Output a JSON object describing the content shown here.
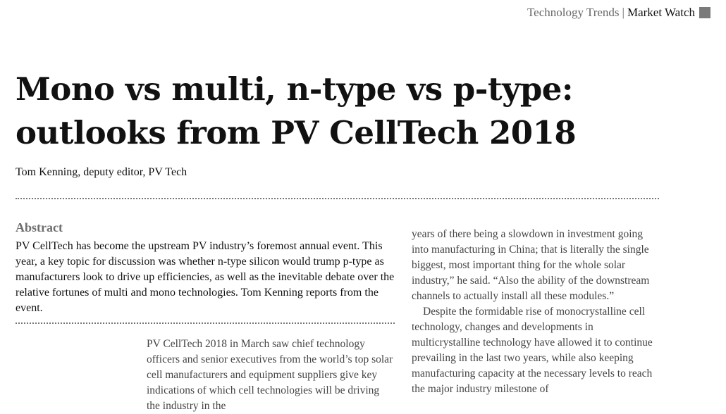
{
  "header": {
    "section": "Technology Trends",
    "separator": "|",
    "subsection": "Market Watch"
  },
  "article": {
    "title": "Mono vs multi, n-type vs p-type: outlooks from PV CellTech 2018",
    "byline": "Tom Kenning, deputy editor, PV Tech",
    "abstract_heading": "Abstract",
    "abstract_text": "PV CellTech has become the upstream PV industry’s foremost annual event. This year, a key topic for discussion was whether n-type silicon would trump p-type as manufacturers look to drive up efficiencies, as well as the inevitable debate over the relative fortunes of multi and mono technologies. Tom Kenning reports from the event.",
    "col1_text": "PV CellTech 2018 in March saw chief technology officers and senior executives from the world’s top solar cell manufacturers and equipment suppliers give key indications of which cell technologies will be driving the industry in the",
    "col2_para1": "years of there being a slowdown in investment going into manufacturing in China; that is literally the single biggest, most important thing for the whole solar industry,” he said. “Also the ability of the downstream channels to actually install all these modules.”",
    "col2_para2": "Despite the formidable rise of monocrystalline cell technology, changes and developments in multicrystalline technology have allowed it to continue prevailing in the last two years, while also keeping manufacturing capacity at the necessary levels to reach the major industry milestone of"
  }
}
